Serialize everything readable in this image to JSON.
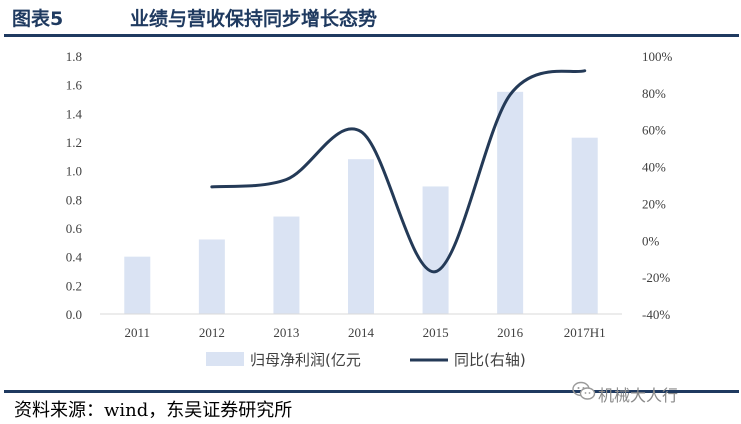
{
  "header": {
    "figure_no": "图表5",
    "title": "业绩与营收保持同步增长态势"
  },
  "chart_data": {
    "type": "bar",
    "categories": [
      "2011",
      "2012",
      "2013",
      "2014",
      "2015",
      "2016",
      "2017H1"
    ],
    "series": [
      {
        "name": "归母净利润(亿元",
        "type": "bar",
        "axis": "left",
        "values": [
          0.4,
          0.52,
          0.68,
          1.08,
          0.89,
          1.55,
          1.23
        ],
        "color": "#dae3f3"
      },
      {
        "name": "同比(右轴)",
        "type": "line",
        "axis": "right",
        "values": [
          null,
          29,
          33,
          59,
          -17,
          79,
          92
        ],
        "color": "#243a57"
      }
    ],
    "y_left": {
      "min": 0,
      "max": 1.8,
      "ticks": [
        "0.0",
        "0.2",
        "0.4",
        "0.6",
        "0.8",
        "1.0",
        "1.2",
        "1.4",
        "1.6",
        "1.8"
      ]
    },
    "y_right": {
      "min": -40,
      "max": 100,
      "unit": "%",
      "ticks": [
        "-40%",
        "-20%",
        "0%",
        "20%",
        "40%",
        "60%",
        "80%",
        "100%"
      ]
    },
    "legend_placement": "bottom-center",
    "grid": false
  },
  "footer": {
    "source": "资料来源：wind，东吴证券研究所",
    "watermark": "机械大人行"
  }
}
